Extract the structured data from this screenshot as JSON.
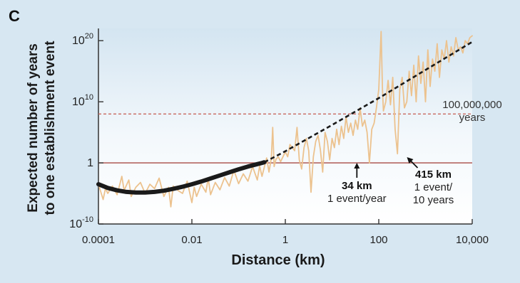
{
  "panel_label": "C",
  "chart_data": {
    "type": "line",
    "title": "",
    "xlabel": "Distance (km)",
    "ylabel_line1": "Expected number of years",
    "ylabel_line2": "to one establishment event",
    "x_scale": "log",
    "y_scale": "log",
    "xlim": [
      0.0001,
      10000
    ],
    "ylim_log10": [
      -10,
      22
    ],
    "x_ticks": [
      {
        "value": 0.0001,
        "label": "0.0001"
      },
      {
        "value": 0.01,
        "label": "0.01"
      },
      {
        "value": 1,
        "label": "1"
      },
      {
        "value": 100,
        "label": "100"
      },
      {
        "value": 10000,
        "label": "10,000"
      }
    ],
    "y_ticks": [
      {
        "log10": 20,
        "base": "10",
        "exp": "20"
      },
      {
        "log10": 10,
        "base": "10",
        "exp": "10"
      },
      {
        "log10": 0,
        "base": "1",
        "exp": ""
      },
      {
        "log10": -10,
        "base": "10",
        "exp": "-10"
      }
    ],
    "reference_lines": [
      {
        "log10_y": 0,
        "style": "solid",
        "color": "#a84a44"
      },
      {
        "log10_y": 8,
        "style": "dashed",
        "color": "#c9685e"
      }
    ],
    "series": [
      {
        "style": "noisy",
        "color": "#ecc28e",
        "points_log10": [
          [
            -4.0,
            -3.5
          ],
          [
            -3.9,
            -6.0
          ],
          [
            -3.85,
            -4.2
          ],
          [
            -3.8,
            -5.0
          ],
          [
            -3.7,
            -3.8
          ],
          [
            -3.6,
            -5.2
          ],
          [
            -3.5,
            -2.2
          ],
          [
            -3.45,
            -4.5
          ],
          [
            -3.35,
            -2.8
          ],
          [
            -3.3,
            -5.5
          ],
          [
            -3.2,
            -4.0
          ],
          [
            -3.1,
            -3.2
          ],
          [
            -3.0,
            -5.0
          ],
          [
            -2.9,
            -3.5
          ],
          [
            -2.8,
            -4.2
          ],
          [
            -2.7,
            -2.5
          ],
          [
            -2.6,
            -5.5
          ],
          [
            -2.5,
            -4.0
          ],
          [
            -2.45,
            -7.2
          ],
          [
            -2.4,
            -3.8
          ],
          [
            -2.3,
            -4.5
          ],
          [
            -2.2,
            -5.0
          ],
          [
            -2.1,
            -3.0
          ],
          [
            -2.0,
            -6.5
          ],
          [
            -1.95,
            -4.0
          ],
          [
            -1.9,
            -5.5
          ],
          [
            -1.8,
            -3.5
          ],
          [
            -1.7,
            -4.8
          ],
          [
            -1.65,
            -2.5
          ],
          [
            -1.6,
            -5.2
          ],
          [
            -1.5,
            -3.2
          ],
          [
            -1.4,
            -4.4
          ],
          [
            -1.3,
            -2.4
          ],
          [
            -1.2,
            -3.8
          ],
          [
            -1.1,
            -1.2
          ],
          [
            -1.0,
            -3.4
          ],
          [
            -0.95,
            -2.6
          ],
          [
            -0.9,
            -1.8
          ],
          [
            -0.8,
            -3.0
          ],
          [
            -0.7,
            -0.6
          ],
          [
            -0.6,
            -2.8
          ],
          [
            -0.55,
            -0.5
          ],
          [
            -0.5,
            -2.2
          ],
          [
            -0.4,
            0.8
          ],
          [
            -0.35,
            -1.5
          ],
          [
            -0.3,
            0.8
          ],
          [
            -0.27,
            5.8
          ],
          [
            -0.24,
            -0.6
          ],
          [
            -0.2,
            0.6
          ],
          [
            -0.15,
            1.0
          ],
          [
            -0.1,
            0.2
          ],
          [
            0.0,
            1.8
          ],
          [
            0.05,
            1.0
          ],
          [
            0.1,
            3.0
          ],
          [
            0.2,
            2.0
          ],
          [
            0.25,
            5.8
          ],
          [
            0.3,
            0.5
          ],
          [
            0.35,
            -1.0
          ],
          [
            0.4,
            2.5
          ],
          [
            0.45,
            4.0
          ],
          [
            0.5,
            2.0
          ],
          [
            0.55,
            -4.8
          ],
          [
            0.6,
            1.0
          ],
          [
            0.65,
            3.5
          ],
          [
            0.7,
            4.5
          ],
          [
            0.75,
            2.2
          ],
          [
            0.8,
            -1.5
          ],
          [
            0.85,
            5.0
          ],
          [
            0.9,
            3.5
          ],
          [
            0.95,
            0.5
          ],
          [
            1.0,
            4.0
          ],
          [
            1.05,
            2.5
          ],
          [
            1.1,
            5.5
          ],
          [
            1.15,
            3.0
          ],
          [
            1.2,
            6.0
          ],
          [
            1.25,
            4.0
          ],
          [
            1.3,
            7.5
          ],
          [
            1.35,
            5.0
          ],
          [
            1.4,
            6.5
          ],
          [
            1.45,
            4.5
          ],
          [
            1.5,
            7.0
          ],
          [
            1.55,
            5.5
          ],
          [
            1.6,
            9.0
          ],
          [
            1.65,
            6.0
          ],
          [
            1.7,
            7.0
          ],
          [
            1.75,
            5.0
          ],
          [
            1.8,
            0.0
          ],
          [
            1.85,
            5.5
          ],
          [
            1.9,
            6.5
          ],
          [
            1.95,
            9.0
          ],
          [
            2.0,
            12.0
          ],
          [
            2.05,
            21.5
          ],
          [
            2.08,
            12.0
          ],
          [
            2.1,
            8.5
          ],
          [
            2.15,
            10.0
          ],
          [
            2.2,
            13.5
          ],
          [
            2.25,
            9.5
          ],
          [
            2.3,
            14.0
          ],
          [
            2.35,
            5.5
          ],
          [
            2.4,
            1.5
          ],
          [
            2.45,
            12.0
          ],
          [
            2.5,
            14.0
          ],
          [
            2.55,
            9.0
          ],
          [
            2.6,
            10.0
          ],
          [
            2.65,
            15.0
          ],
          [
            2.7,
            11.0
          ],
          [
            2.75,
            16.0
          ],
          [
            2.8,
            10.0
          ],
          [
            2.85,
            17.5
          ],
          [
            2.9,
            13.0
          ],
          [
            2.95,
            16.5
          ],
          [
            3.0,
            10.0
          ],
          [
            3.05,
            18.5
          ],
          [
            3.1,
            12.5
          ],
          [
            3.15,
            17.0
          ],
          [
            3.2,
            15.0
          ],
          [
            3.25,
            19.5
          ],
          [
            3.3,
            14.0
          ],
          [
            3.35,
            18.5
          ],
          [
            3.4,
            17.0
          ],
          [
            3.45,
            20.0
          ],
          [
            3.5,
            16.5
          ],
          [
            3.55,
            19.0
          ],
          [
            3.6,
            17.5
          ],
          [
            3.65,
            20.5
          ],
          [
            3.7,
            18.5
          ],
          [
            3.75,
            19.0
          ],
          [
            3.8,
            18.0
          ],
          [
            3.85,
            20.0
          ],
          [
            3.9,
            19.5
          ],
          [
            3.95,
            20.5
          ],
          [
            4.0,
            20.8
          ]
        ]
      },
      {
        "style": "solid-thick",
        "color": "#1a1a1a",
        "points_log10": [
          [
            -4.0,
            -3.5
          ],
          [
            -3.8,
            -4.1
          ],
          [
            -3.6,
            -4.5
          ],
          [
            -3.4,
            -4.75
          ],
          [
            -3.2,
            -4.85
          ],
          [
            -3.0,
            -4.85
          ],
          [
            -2.8,
            -4.75
          ],
          [
            -2.6,
            -4.55
          ],
          [
            -2.4,
            -4.25
          ],
          [
            -2.2,
            -3.9
          ],
          [
            -2.0,
            -3.5
          ],
          [
            -1.8,
            -3.05
          ],
          [
            -1.6,
            -2.55
          ],
          [
            -1.4,
            -2.05
          ],
          [
            -1.2,
            -1.55
          ],
          [
            -1.0,
            -1.05
          ],
          [
            -0.8,
            -0.6
          ],
          [
            -0.6,
            -0.2
          ],
          [
            -0.5,
            0.0
          ],
          [
            -0.45,
            0.1
          ]
        ]
      },
      {
        "style": "dashed",
        "color": "#1a1a1a",
        "points_log10": [
          [
            -0.45,
            0.1
          ],
          [
            0.0,
            1.9
          ],
          [
            1.0,
            6.2
          ],
          [
            2.0,
            10.6
          ],
          [
            3.0,
            15.2
          ],
          [
            4.0,
            19.8
          ]
        ]
      }
    ],
    "annotations": [
      {
        "id": "years",
        "lines": [
          "100,000,000",
          "years"
        ]
      },
      {
        "id": "km34",
        "bold": "34 km",
        "lines": [
          "1 event/year"
        ],
        "x_value": 34,
        "y_log10": 0
      },
      {
        "id": "km415",
        "bold": "415 km",
        "lines": [
          "1 event/",
          "10 years"
        ],
        "x_value": 415,
        "y_log10": 1
      }
    ]
  }
}
